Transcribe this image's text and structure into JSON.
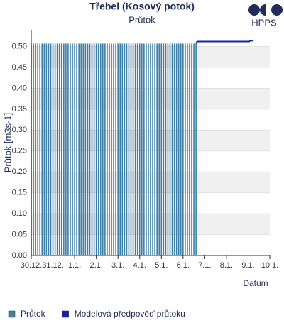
{
  "logo": "HPPS",
  "chart_data": {
    "type": "bar-line",
    "title": "Třebel (Kosový potok)",
    "subtitle": "Průtok",
    "x_label": "Datum",
    "y_label": "Průtok [m3s-1]",
    "xlim": [
      0,
      11
    ],
    "xticks": [
      {
        "value": 0,
        "label": "30.12."
      },
      {
        "value": 1,
        "label": "31.12."
      },
      {
        "value": 2,
        "label": "1.1."
      },
      {
        "value": 3,
        "label": "2.1."
      },
      {
        "value": 4,
        "label": "3.1."
      },
      {
        "value": 5,
        "label": "4.1."
      },
      {
        "value": 6,
        "label": "5.1."
      },
      {
        "value": 7,
        "label": "6.1."
      },
      {
        "value": 8,
        "label": "7.1."
      },
      {
        "value": 9,
        "label": "8.1."
      },
      {
        "value": 10,
        "label": "9.1."
      },
      {
        "value": 11,
        "label": "10.1."
      }
    ],
    "ylim": [
      0,
      0.54
    ],
    "yticks": [
      {
        "value": 0,
        "label": "0.00"
      },
      {
        "value": 0.05,
        "label": "0.05"
      },
      {
        "value": 0.1,
        "label": "0.10"
      },
      {
        "value": 0.15,
        "label": "0.15"
      },
      {
        "value": 0.2,
        "label": "0.20"
      },
      {
        "value": 0.25,
        "label": "0.25"
      },
      {
        "value": 0.3,
        "label": "0.30"
      },
      {
        "value": 0.35,
        "label": "0.35"
      },
      {
        "value": 0.4,
        "label": "0.40"
      },
      {
        "value": 0.45,
        "label": "0.45"
      },
      {
        "value": 0.5,
        "label": "0.50"
      }
    ],
    "grid": "bands",
    "series": [
      {
        "name": "Průtok",
        "kind": "bar",
        "color": "#3f7fa8",
        "x": [
          0,
          0.1,
          0.2,
          0.3,
          0.4,
          0.5,
          0.6,
          0.7,
          0.8,
          0.9,
          1,
          1.1,
          1.2,
          1.3,
          1.4,
          1.5,
          1.6,
          1.7,
          1.8,
          1.9,
          2,
          2.1,
          2.2,
          2.3,
          2.4,
          2.5,
          2.6,
          2.7,
          2.8,
          2.9,
          3,
          3.1,
          3.2,
          3.3,
          3.4,
          3.5,
          3.6,
          3.7,
          3.8,
          3.9,
          4,
          4.1,
          4.2,
          4.3,
          4.4,
          4.5,
          4.6,
          4.7,
          4.8,
          4.9,
          5,
          5.1,
          5.2,
          5.3,
          5.4,
          5.5,
          5.6,
          5.7,
          5.8,
          5.9,
          6,
          6.1,
          6.2,
          6.3,
          6.4,
          6.5,
          6.6,
          6.7,
          6.8,
          6.9,
          7,
          7.1,
          7.2,
          7.3,
          7.4,
          7.5,
          7.6
        ],
        "values": [
          0.507,
          0.507,
          0.507,
          0.507,
          0.507,
          0.507,
          0.507,
          0.507,
          0.507,
          0.507,
          0.507,
          0.507,
          0.507,
          0.507,
          0.507,
          0.507,
          0.507,
          0.507,
          0.507,
          0.507,
          0.507,
          0.507,
          0.507,
          0.507,
          0.507,
          0.507,
          0.507,
          0.507,
          0.507,
          0.507,
          0.507,
          0.507,
          0.507,
          0.507,
          0.507,
          0.507,
          0.507,
          0.507,
          0.507,
          0.507,
          0.507,
          0.507,
          0.507,
          0.507,
          0.507,
          0.507,
          0.507,
          0.507,
          0.507,
          0.507,
          0.507,
          0.507,
          0.507,
          0.507,
          0.507,
          0.507,
          0.507,
          0.507,
          0.507,
          0.507,
          0.507,
          0.507,
          0.507,
          0.507,
          0.507,
          0.507,
          0.507,
          0.507,
          0.507,
          0.507,
          0.507,
          0.507,
          0.507,
          0.507,
          0.507,
          0.507,
          0.507
        ]
      },
      {
        "name": "Modelová předpověď průtoku",
        "kind": "line",
        "color": "#1020b0",
        "x": [
          7.6,
          7.65,
          10.05,
          10.1,
          10.25
        ],
        "values": [
          0.507,
          0.512,
          0.512,
          0.514,
          0.514
        ]
      }
    ]
  }
}
